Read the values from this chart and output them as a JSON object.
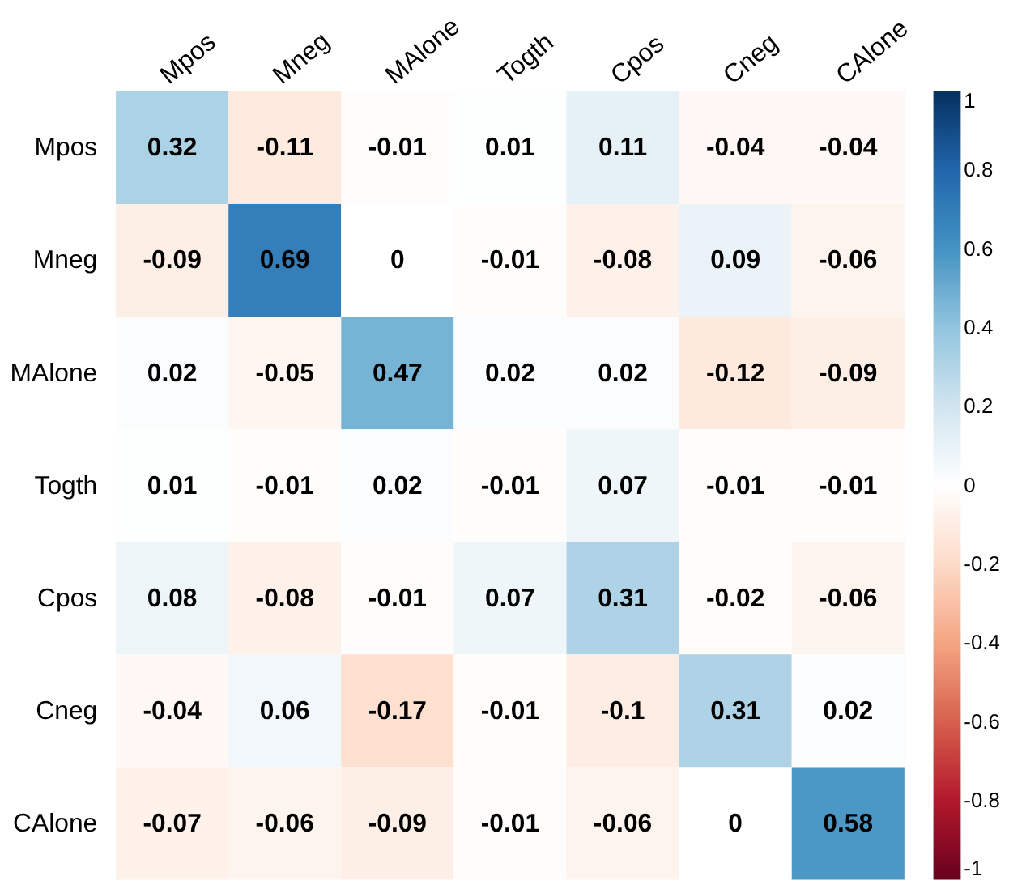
{
  "chart_data": {
    "type": "heatmap",
    "categories": [
      "Mpos",
      "Mneg",
      "MAlone",
      "Togth",
      "Cpos",
      "Cneg",
      "CAlone"
    ],
    "y_categories": [
      "Mpos",
      "Mneg",
      "MAlone",
      "Togth",
      "Cpos",
      "Cneg",
      "CAlone"
    ],
    "cells": [
      [
        0.32,
        -0.11,
        -0.01,
        0.01,
        0.11,
        -0.04,
        -0.04
      ],
      [
        -0.09,
        0.69,
        0,
        -0.01,
        -0.08,
        0.09,
        -0.06
      ],
      [
        0.02,
        -0.05,
        0.47,
        0.02,
        0.02,
        -0.12,
        -0.09
      ],
      [
        0.01,
        -0.01,
        0.02,
        -0.01,
        0.07,
        -0.01,
        -0.01
      ],
      [
        0.08,
        -0.08,
        -0.01,
        0.07,
        0.31,
        -0.02,
        -0.06
      ],
      [
        -0.04,
        0.06,
        -0.17,
        -0.01,
        -0.1,
        0.31,
        0.02
      ],
      [
        -0.07,
        -0.06,
        -0.09,
        -0.01,
        -0.06,
        0,
        0.58
      ]
    ],
    "clim": [
      -1,
      1
    ],
    "cticks": [
      -1,
      -0.8,
      -0.6,
      -0.4,
      -0.2,
      0,
      0.2,
      0.4,
      0.6,
      0.8,
      1
    ],
    "data_labels": true
  }
}
